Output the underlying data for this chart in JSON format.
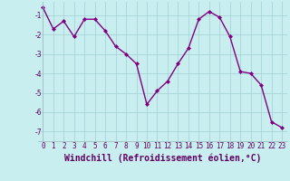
{
  "x": [
    0,
    1,
    2,
    3,
    4,
    5,
    6,
    7,
    8,
    9,
    10,
    11,
    12,
    13,
    14,
    15,
    16,
    17,
    18,
    19,
    20,
    21,
    22,
    23
  ],
  "y": [
    -0.6,
    -1.7,
    -1.3,
    -2.1,
    -1.2,
    -1.2,
    -1.8,
    -2.6,
    -3.0,
    -3.5,
    -5.6,
    -4.9,
    -4.4,
    -3.5,
    -2.7,
    -1.2,
    -0.8,
    -1.1,
    -2.1,
    -3.9,
    -4.0,
    -4.6,
    -6.5,
    -6.8
  ],
  "line_color": "#800080",
  "marker": "D",
  "marker_size": 2,
  "bg_color": "#c8eef0",
  "grid_color": "#a8d4d8",
  "xlabel": "Windchill (Refroidissement éolien,°C)",
  "xlabel_fontsize": 7,
  "yticks": [
    -7,
    -6,
    -5,
    -4,
    -3,
    -2,
    -1
  ],
  "xticks": [
    0,
    1,
    2,
    3,
    4,
    5,
    6,
    7,
    8,
    9,
    10,
    11,
    12,
    13,
    14,
    15,
    16,
    17,
    18,
    19,
    20,
    21,
    22,
    23
  ],
  "ylim": [
    -7.5,
    -0.3
  ],
  "xlim": [
    -0.5,
    23.5
  ],
  "tick_fontsize": 5.5,
  "line_width": 1.0,
  "spine_color": "#a0c0c0"
}
